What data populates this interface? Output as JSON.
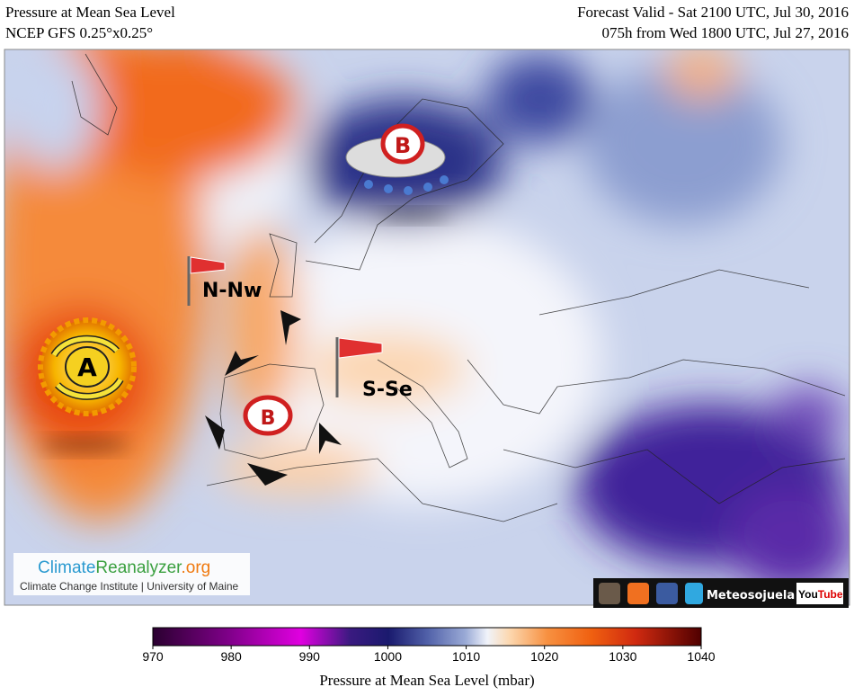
{
  "header": {
    "title": "Pressure at Mean Sea Level",
    "model": "NCEP GFS 0.25°x0.25°",
    "valid": "Forecast Valid - Sat 2100 UTC, Jul 30, 2016",
    "run": "075h from Wed 1800 UTC, Jul 27, 2016"
  },
  "map": {
    "labels": {
      "high": "A",
      "low_north": "B",
      "low_iberia": "B",
      "wind_west": "N-Nw",
      "wind_east": "S-Se"
    }
  },
  "logo": {
    "name_a": "Climate",
    "name_b": "Reanalyzer",
    "name_c": ".org",
    "subtitle": "Climate Change Institute | University of Maine"
  },
  "social": {
    "name": "Meteosojuela",
    "youtube_a": "You",
    "youtube_b": "Tube"
  },
  "colorbar": {
    "range": [
      970,
      1040
    ],
    "ticks": [
      970,
      980,
      990,
      1000,
      1010,
      1020,
      1030,
      1040
    ],
    "label": "Pressure at Mean Sea Level (mbar)"
  }
}
